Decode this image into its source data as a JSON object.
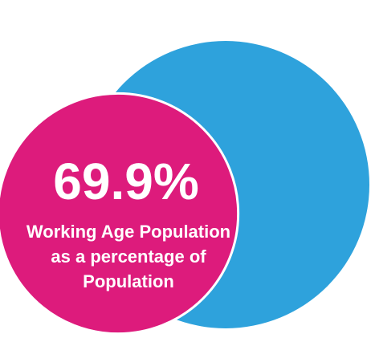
{
  "chart_data": {
    "type": "bubble",
    "value_label": "69.9%",
    "label_lines": [
      "Working Age Population",
      "as a percentage of",
      "Population"
    ],
    "series": [
      {
        "name": "Population",
        "value": 100,
        "color": "#2ea2dc"
      },
      {
        "name": "Working Age Population",
        "value": 69.9,
        "color": "#dd1b7c"
      }
    ]
  }
}
